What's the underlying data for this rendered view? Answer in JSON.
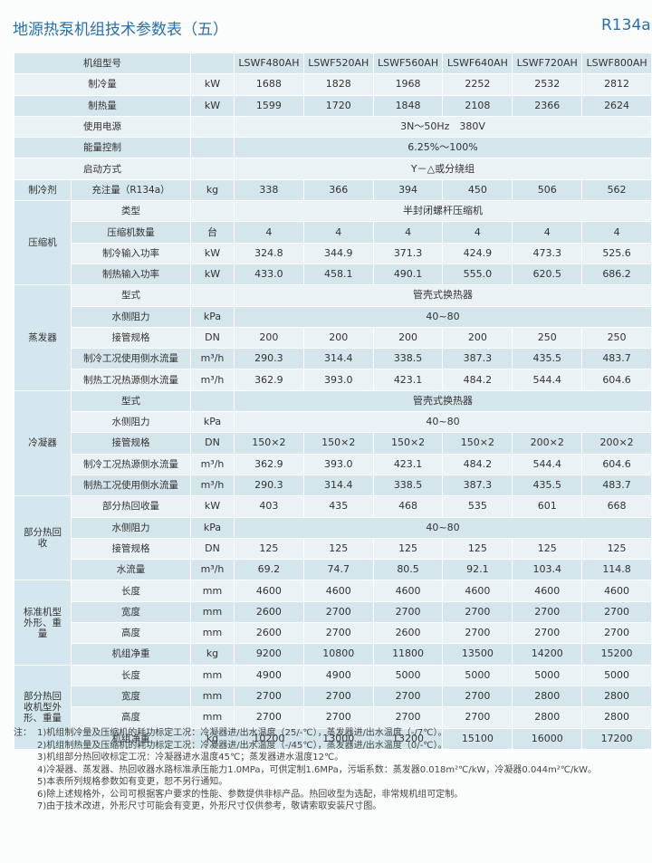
{
  "header": {
    "title": "地源热泵机组技术参数表（五）",
    "refrigerant": "R134a"
  },
  "table": {
    "sections": [
      {
        "rows": [
          {
            "label": "机组型号",
            "values": [
              "LSWF480AH",
              "LSWF520AH",
              "LSWF560AH",
              "LSWF640AH",
              "LSWF720AH",
              "LSWF800AH"
            ]
          },
          {
            "label": "制冷量",
            "unit": "kW",
            "values": [
              "1688",
              "1828",
              "1968",
              "2252",
              "2532",
              "2812"
            ]
          },
          {
            "label": "制热量",
            "unit": "kW",
            "values": [
              "1599",
              "1720",
              "1848",
              "2108",
              "2366",
              "2624"
            ]
          },
          {
            "label": "使用电源",
            "value": "3N～50Hz　380V"
          },
          {
            "label": "能量控制",
            "value": "6.25%～100%"
          },
          {
            "label": "启动方式",
            "value": "Y－△或分绕组"
          }
        ]
      },
      {
        "label": "制冷剂",
        "rows": [
          {
            "label": "充注量（R134a）",
            "unit": "kg",
            "values": [
              "338",
              "366",
              "394",
              "450",
              "506",
              "562"
            ]
          }
        ]
      },
      {
        "label": "压缩机",
        "rows": [
          {
            "label": "类型",
            "value": "半封闭螺杆压缩机"
          },
          {
            "label": "压缩机数量",
            "unit": "台",
            "values": [
              "4",
              "4",
              "4",
              "4",
              "4",
              "4"
            ]
          },
          {
            "label": "制冷输入功率",
            "unit": "kW",
            "values": [
              "324.8",
              "344.9",
              "371.3",
              "424.9",
              "473.3",
              "525.6"
            ]
          },
          {
            "label": "制热输入功率",
            "unit": "kW",
            "values": [
              "433.0",
              "458.1",
              "490.1",
              "555.0",
              "620.5",
              "686.2"
            ]
          }
        ]
      },
      {
        "label": "蒸发器",
        "rows": [
          {
            "label": "型式",
            "value": "管壳式换热器"
          },
          {
            "label": "水侧阻力",
            "unit": "kPa",
            "value": "40~80"
          },
          {
            "label": "接管规格",
            "unit": "DN",
            "values": [
              "200",
              "200",
              "200",
              "200",
              "250",
              "250"
            ]
          },
          {
            "label": "制冷工况使用侧水流量",
            "unit": "m³/h",
            "values": [
              "290.3",
              "314.4",
              "338.5",
              "387.3",
              "435.5",
              "483.7"
            ]
          },
          {
            "label": "制热工况热源侧水流量",
            "unit": "m³/h",
            "values": [
              "362.9",
              "393.0",
              "423.1",
              "484.2",
              "544.4",
              "604.6"
            ]
          }
        ]
      },
      {
        "label": "冷凝器",
        "rows": [
          {
            "label": "型式",
            "value": "管壳式换热器"
          },
          {
            "label": "水侧阻力",
            "unit": "kPa",
            "value": "40~80"
          },
          {
            "label": "接管规格",
            "unit": "DN",
            "values": [
              "150×2",
              "150×2",
              "150×2",
              "150×2",
              "200×2",
              "200×2"
            ]
          },
          {
            "label": "制冷工况热源侧水流量",
            "unit": "m³/h",
            "values": [
              "362.9",
              "393.0",
              "423.1",
              "484.2",
              "544.4",
              "604.6"
            ]
          },
          {
            "label": "制热工况使用侧水流量",
            "unit": "m³/h",
            "values": [
              "290.3",
              "314.4",
              "338.5",
              "387.3",
              "435.5",
              "483.7"
            ]
          }
        ]
      },
      {
        "label": "部分热回收",
        "rows": [
          {
            "label": "部分热回收量",
            "unit": "kW",
            "values": [
              "403",
              "435",
              "468",
              "535",
              "601",
              "668"
            ]
          },
          {
            "label": "水侧阻力",
            "unit": "kPa",
            "value": "40~80"
          },
          {
            "label": "接管规格",
            "unit": "DN",
            "values": [
              "125",
              "125",
              "125",
              "125",
              "125",
              "125"
            ]
          },
          {
            "label": "水流量",
            "unit": "m³/h",
            "values": [
              "69.2",
              "74.7",
              "80.5",
              "92.1",
              "103.4",
              "114.8"
            ]
          }
        ]
      },
      {
        "label": "标准机型外形、重量",
        "rows": [
          {
            "label": "长度",
            "unit": "mm",
            "values": [
              "4600",
              "4600",
              "4600",
              "4600",
              "4600",
              "4600"
            ]
          },
          {
            "label": "宽度",
            "unit": "mm",
            "values": [
              "2600",
              "2700",
              "2700",
              "2700",
              "2700",
              "2700"
            ]
          },
          {
            "label": "高度",
            "unit": "mm",
            "values": [
              "2600",
              "2700",
              "2600",
              "2700",
              "2700",
              "2700"
            ]
          },
          {
            "label": "机组净重",
            "unit": "kg",
            "values": [
              "9200",
              "10800",
              "11800",
              "13500",
              "14200",
              "15200"
            ]
          }
        ]
      },
      {
        "label": "部分热回收机型外形、重量",
        "rows": [
          {
            "label": "长度",
            "unit": "mm",
            "values": [
              "4900",
              "4900",
              "5000",
              "5000",
              "5000",
              "5000"
            ]
          },
          {
            "label": "宽度",
            "unit": "mm",
            "values": [
              "2700",
              "2700",
              "2700",
              "2700",
              "2800",
              "2800"
            ]
          },
          {
            "label": "高度",
            "unit": "mm",
            "values": [
              "2700",
              "2700",
              "2700",
              "2700",
              "2800",
              "2800"
            ]
          },
          {
            "label": "机组净重",
            "unit": "kg",
            "values": [
              "10200",
              "13000",
              "13200",
              "15100",
              "16000",
              "17200"
            ]
          }
        ]
      }
    ]
  },
  "notes": {
    "prefix": "注：",
    "items": [
      "1)机组制冷量及压缩机的耗功标定工况：冷凝器进/出水温度（25/-℃），蒸发器进/出水温度（-/7℃）。",
      "2)机组制热量及压缩机的耗功标定工况：冷凝器进/出水温度（-/45℃），蒸发器进/出水温度（0/-℃）。",
      "3)机组部分热回收标定工况：冷凝器进水温度45℃；蒸发器进水温度12℃。",
      "4)冷凝器、蒸发器、热回收器水路标准承压能力1.0MPa，可供定制1.6MPa，污垢系数：蒸发器0.018m²℃/kW，冷凝器0.044m²℃/kW。",
      "5)本表所列规格参数如有变更，恕不另行通知。",
      "6)除上述规格外，公司可根据客户要求的性能、参数提供非标产品。热回收型为选配，非常规机组可定制。",
      "7)由于技术改进，外形尺寸可能会有变更，外形尺寸仅供参考，敬请索取安装尺寸图。"
    ]
  }
}
